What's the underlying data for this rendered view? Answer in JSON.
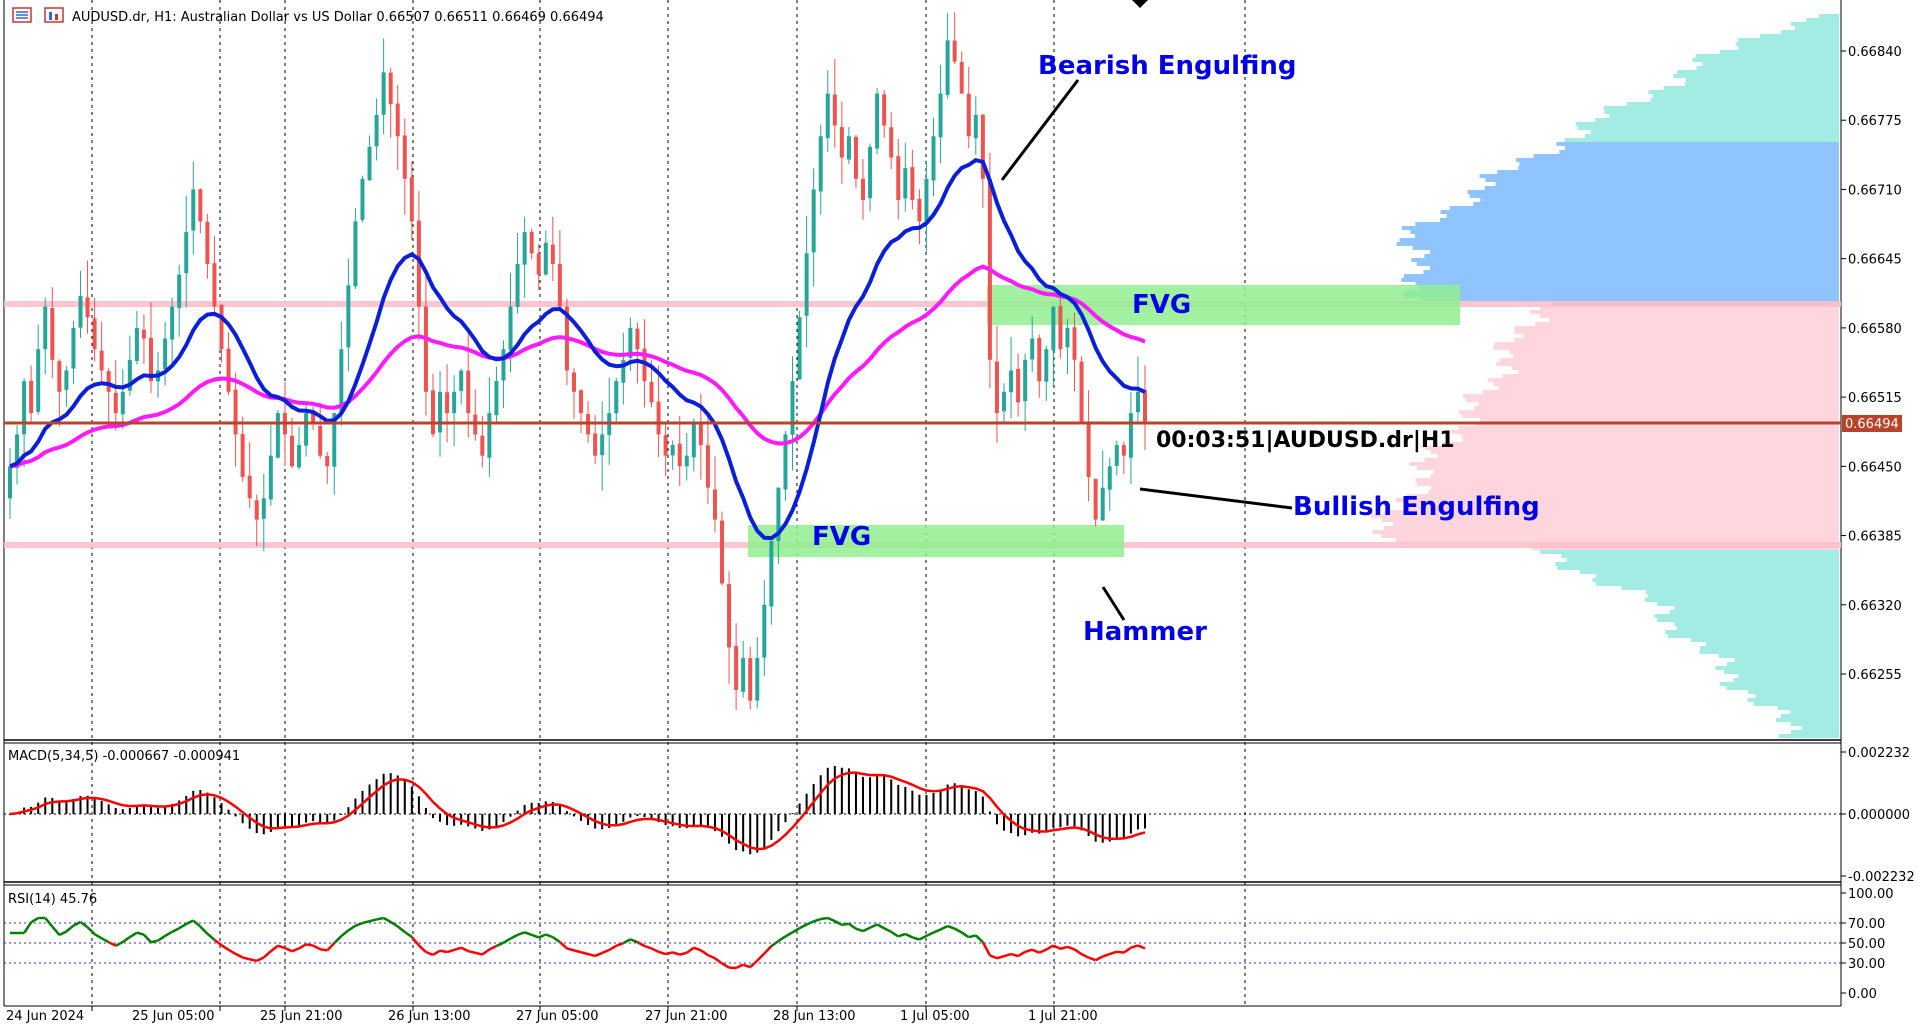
{
  "header": {
    "title": "AUDUSD.dr, H1:  Australian Dollar vs US Dollar  0.66507 0.66511 0.66469 0.66494"
  },
  "colors": {
    "bull": "#26a69a",
    "bear": "#ef5350",
    "ema_fast": "#0a1fd8",
    "ema_slow": "#ff1aff",
    "price_line": "#b5442a",
    "fvg": "#90ee90",
    "zone_line": "#ffb6c1",
    "vp_upper": "#90c4ff",
    "vp_lower": "#ffd6de",
    "vp_tail": "#a3ece4",
    "macd_signal": "#ff0000",
    "rsi_up": "#008000",
    "rsi_down": "#ff0000",
    "annotation": "#0000e6"
  },
  "annotations": {
    "bearish": "Bearish Engulfing",
    "bullish": "Bullish Engulfing",
    "hammer": "Hammer",
    "fvg_top": "FVG",
    "fvg_bottom": "FVG",
    "timer": "00:03:51|AUDUSD.dr|H1"
  },
  "macd_header": "MACD(5,34,5) -0.000667 -0.000941",
  "rsi_header": "RSI(14) 45.76",
  "current_price_label": "0.66494",
  "chart_data": [
    {
      "type": "candlestick",
      "title": "AUDUSD.dr, H1",
      "y_ticks": [
        "0.66840",
        "0.66775",
        "0.66710",
        "0.66645",
        "0.66580",
        "0.66515",
        "0.66450",
        "0.66385",
        "0.66320",
        "0.66255"
      ],
      "x_ticks": [
        "24 Jun 2024",
        "25 Jun 05:00",
        "25 Jun 21:00",
        "26 Jun 13:00",
        "27 Jun 05:00",
        "27 Jun 21:00",
        "28 Jun 13:00",
        "1 Jul 05:00",
        "1 Jul 21:00"
      ],
      "ylim": [
        0.662,
        0.669
      ],
      "current_price": 0.66494,
      "close": [
        0.6645,
        0.6648,
        0.6653,
        0.665,
        0.6656,
        0.666,
        0.6655,
        0.6652,
        0.6654,
        0.6658,
        0.6661,
        0.6659,
        0.6656,
        0.6654,
        0.6652,
        0.665,
        0.6652,
        0.6655,
        0.6658,
        0.6657,
        0.6653,
        0.6654,
        0.6657,
        0.666,
        0.6663,
        0.6667,
        0.6671,
        0.6668,
        0.6664,
        0.666,
        0.6656,
        0.6652,
        0.6648,
        0.6644,
        0.6642,
        0.664,
        0.6642,
        0.6646,
        0.665,
        0.6648,
        0.6645,
        0.6647,
        0.665,
        0.6649,
        0.6646,
        0.6645,
        0.665,
        0.6656,
        0.6662,
        0.6668,
        0.6672,
        0.6675,
        0.6678,
        0.6682,
        0.6679,
        0.6676,
        0.6672,
        0.6668,
        0.666,
        0.6652,
        0.6648,
        0.6652,
        0.665,
        0.6652,
        0.6654,
        0.665,
        0.6648,
        0.6646,
        0.665,
        0.6653,
        0.6656,
        0.666,
        0.6664,
        0.6667,
        0.6665,
        0.6663,
        0.6666,
        0.6664,
        0.666,
        0.6654,
        0.6652,
        0.665,
        0.6648,
        0.6646,
        0.6648,
        0.665,
        0.6653,
        0.6655,
        0.6658,
        0.6656,
        0.6653,
        0.6651,
        0.6648,
        0.6646,
        0.6647,
        0.6645,
        0.6646,
        0.6649,
        0.6647,
        0.6643,
        0.664,
        0.6634,
        0.6628,
        0.6624,
        0.6627,
        0.6623,
        0.6627,
        0.6632,
        0.6638,
        0.6643,
        0.6648,
        0.6653,
        0.6659,
        0.6665,
        0.6671,
        0.6676,
        0.668,
        0.6677,
        0.6674,
        0.6676,
        0.6672,
        0.667,
        0.6675,
        0.668,
        0.6677,
        0.6674,
        0.667,
        0.6673,
        0.667,
        0.6668,
        0.6672,
        0.6676,
        0.668,
        0.6685,
        0.6683,
        0.668,
        0.6676,
        0.6678,
        0.6672,
        0.6655,
        0.665,
        0.6652,
        0.6654,
        0.6651,
        0.6655,
        0.6657,
        0.6653,
        0.6656,
        0.666,
        0.6656,
        0.6658,
        0.6655,
        0.6649,
        0.6644,
        0.664,
        0.6643,
        0.6645,
        0.6647,
        0.6646,
        0.665,
        0.6652,
        0.6649
      ]
    },
    {
      "type": "bar",
      "title": "MACD(5,34,5)",
      "y_ticks": [
        "0.002232",
        "0.000000",
        "-0.002232"
      ],
      "ylim": [
        -0.0025,
        0.0025
      ],
      "macd": -0.000667,
      "signal": -0.000941
    },
    {
      "type": "line",
      "title": "RSI(14)",
      "y_ticks": [
        "100.00",
        "70.00",
        "50.00",
        "30.00",
        "0.00"
      ],
      "ylim": [
        0,
        100
      ],
      "levels": [
        70,
        50,
        30
      ],
      "last": 45.76
    }
  ]
}
